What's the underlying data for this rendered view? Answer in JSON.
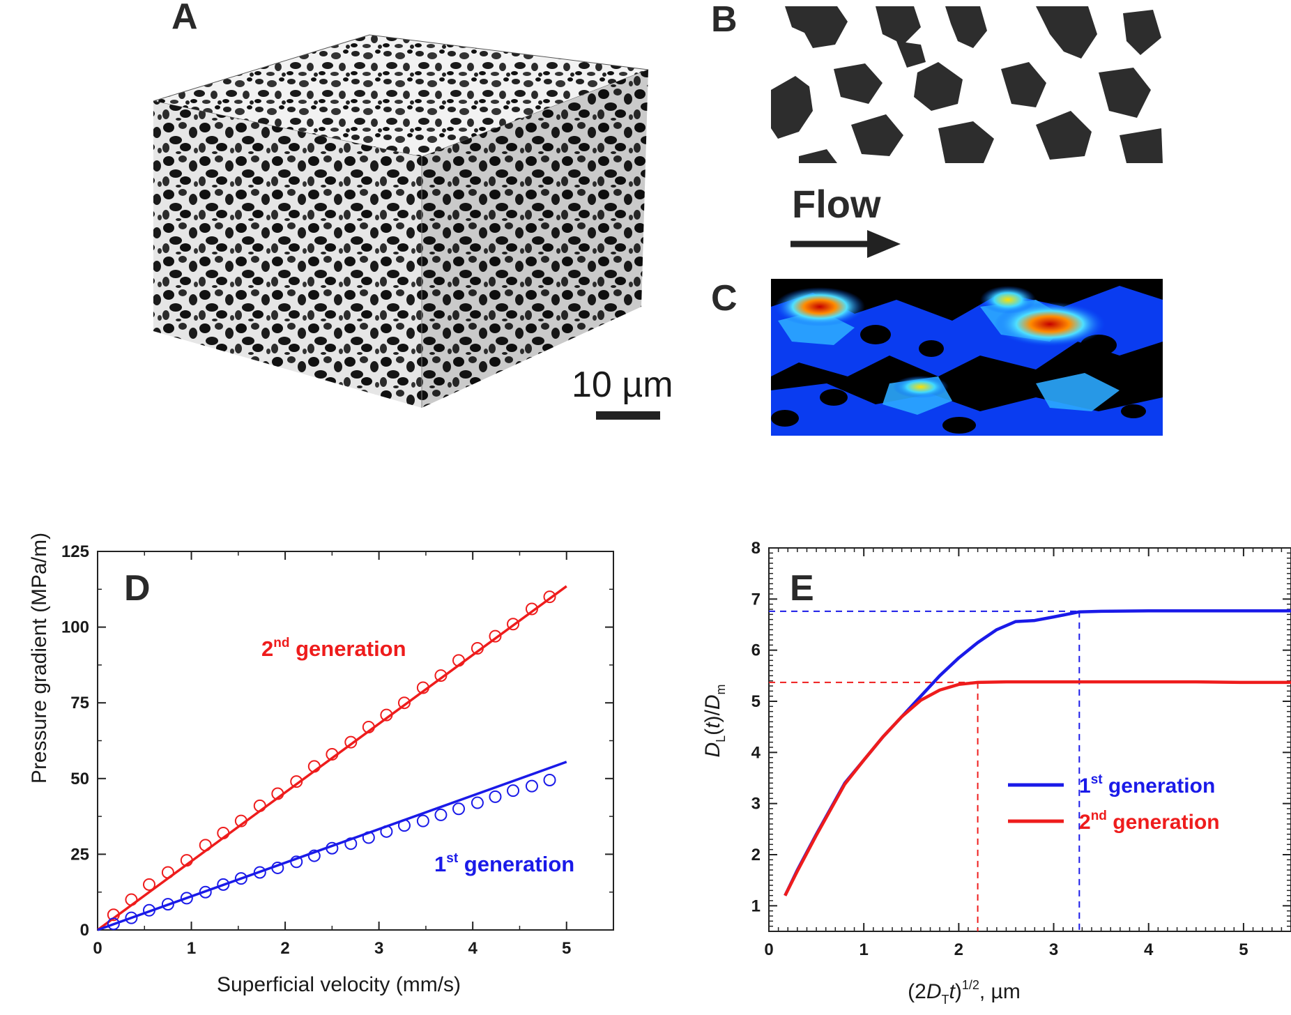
{
  "panel_labels": {
    "a": "A",
    "b": "B",
    "c": "C"
  },
  "flow_label": "Flow",
  "scale_bar_label": "10 µm",
  "colors": {
    "red": "#ee1c1c",
    "blue": "#1a1ae8",
    "text": "#1a1a1a"
  },
  "chart_data": [
    {
      "type": "scatter",
      "panel_label": "D",
      "xlabel": "Superficial velocity (mm/s)",
      "ylabel": "Pressure gradient (MPa/m)",
      "xlim": [
        0,
        5.5
      ],
      "ylim": [
        0,
        125
      ],
      "x_ticks": [
        "0",
        "1",
        "2",
        "3",
        "4",
        "5"
      ],
      "y_ticks": [
        "0",
        "25",
        "50",
        "75",
        "100",
        "125"
      ],
      "series": [
        {
          "name": "2nd generation",
          "label_main": "2",
          "label_sup": "nd",
          "label_rest": " generation",
          "color": "#ee1c1c",
          "fit": [
            [
              0,
              0
            ],
            [
              5,
              113.5
            ]
          ],
          "x": [
            0.17,
            0.36,
            0.55,
            0.75,
            0.95,
            1.15,
            1.34,
            1.53,
            1.73,
            1.92,
            2.12,
            2.31,
            2.5,
            2.7,
            2.89,
            3.08,
            3.27,
            3.47,
            3.66,
            3.85,
            4.05,
            4.24,
            4.43,
            4.63,
            4.82
          ],
          "y": [
            5,
            10,
            15,
            19,
            23,
            28,
            32,
            36,
            41,
            45,
            49,
            54,
            58,
            62,
            67,
            71,
            75,
            80,
            84,
            89,
            93,
            97,
            101,
            106,
            110
          ]
        },
        {
          "name": "1st generation",
          "label_main": "1",
          "label_sup": "st",
          "label_rest": " generation",
          "color": "#1a1ae8",
          "fit": [
            [
              0,
              0
            ],
            [
              5,
              55.5
            ]
          ],
          "x": [
            0.17,
            0.36,
            0.55,
            0.75,
            0.95,
            1.15,
            1.34,
            1.53,
            1.73,
            1.92,
            2.12,
            2.31,
            2.5,
            2.7,
            2.89,
            3.08,
            3.27,
            3.47,
            3.66,
            3.85,
            4.05,
            4.24,
            4.43,
            4.63,
            4.82
          ],
          "y": [
            2,
            4,
            6.5,
            8.5,
            10.5,
            12.5,
            15,
            17,
            19,
            20.5,
            22.5,
            24.5,
            27,
            28.5,
            30.5,
            32.5,
            34.5,
            36,
            38,
            40,
            42,
            44,
            46,
            47.5,
            49.5
          ]
        }
      ]
    },
    {
      "type": "line",
      "panel_label": "E",
      "xlabel_parts": [
        "(2",
        "D",
        "T",
        "t",
        ")",
        "1/2",
        ", µm"
      ],
      "ylabel_parts": [
        "D",
        "L",
        "(",
        "t",
        ")/",
        "D",
        "m"
      ],
      "xlim": [
        0,
        5.5
      ],
      "ylim": [
        0.5,
        8
      ],
      "x_ticks": [
        "0",
        "1",
        "2",
        "3",
        "4",
        "5"
      ],
      "y_ticks": [
        "1",
        "2",
        "3",
        "4",
        "5",
        "6",
        "7",
        "8"
      ],
      "guides": [
        {
          "series": "1st generation",
          "x": 3.27,
          "y": 6.76
        },
        {
          "series": "2nd generation",
          "x": 2.2,
          "y": 5.37
        }
      ],
      "legend_position": "center-right",
      "series": [
        {
          "name": "1st generation",
          "label_main": "1",
          "label_sup": "st",
          "label_rest": " generation",
          "color": "#1a1ae8",
          "x": [
            0.17,
            0.3,
            0.5,
            0.8,
            1.0,
            1.2,
            1.4,
            1.6,
            1.8,
            2.0,
            2.2,
            2.4,
            2.6,
            2.8,
            3.0,
            3.27,
            3.5,
            4.0,
            4.5,
            5.0,
            5.5
          ],
          "y": [
            1.2,
            1.7,
            2.4,
            3.4,
            3.85,
            4.3,
            4.7,
            5.1,
            5.5,
            5.85,
            6.15,
            6.4,
            6.56,
            6.58,
            6.65,
            6.75,
            6.76,
            6.77,
            6.77,
            6.77,
            6.77
          ]
        },
        {
          "name": "2nd generation",
          "label_main": "2",
          "label_sup": "nd",
          "label_rest": " generation",
          "color": "#ee1c1c",
          "x": [
            0.17,
            0.3,
            0.5,
            0.8,
            1.0,
            1.2,
            1.4,
            1.6,
            1.8,
            2.0,
            2.2,
            2.5,
            3.0,
            3.5,
            4.0,
            4.5,
            5.0,
            5.5
          ],
          "y": [
            1.2,
            1.68,
            2.38,
            3.38,
            3.85,
            4.3,
            4.7,
            5.02,
            5.22,
            5.33,
            5.37,
            5.38,
            5.38,
            5.38,
            5.38,
            5.38,
            5.37,
            5.37
          ]
        }
      ]
    }
  ]
}
